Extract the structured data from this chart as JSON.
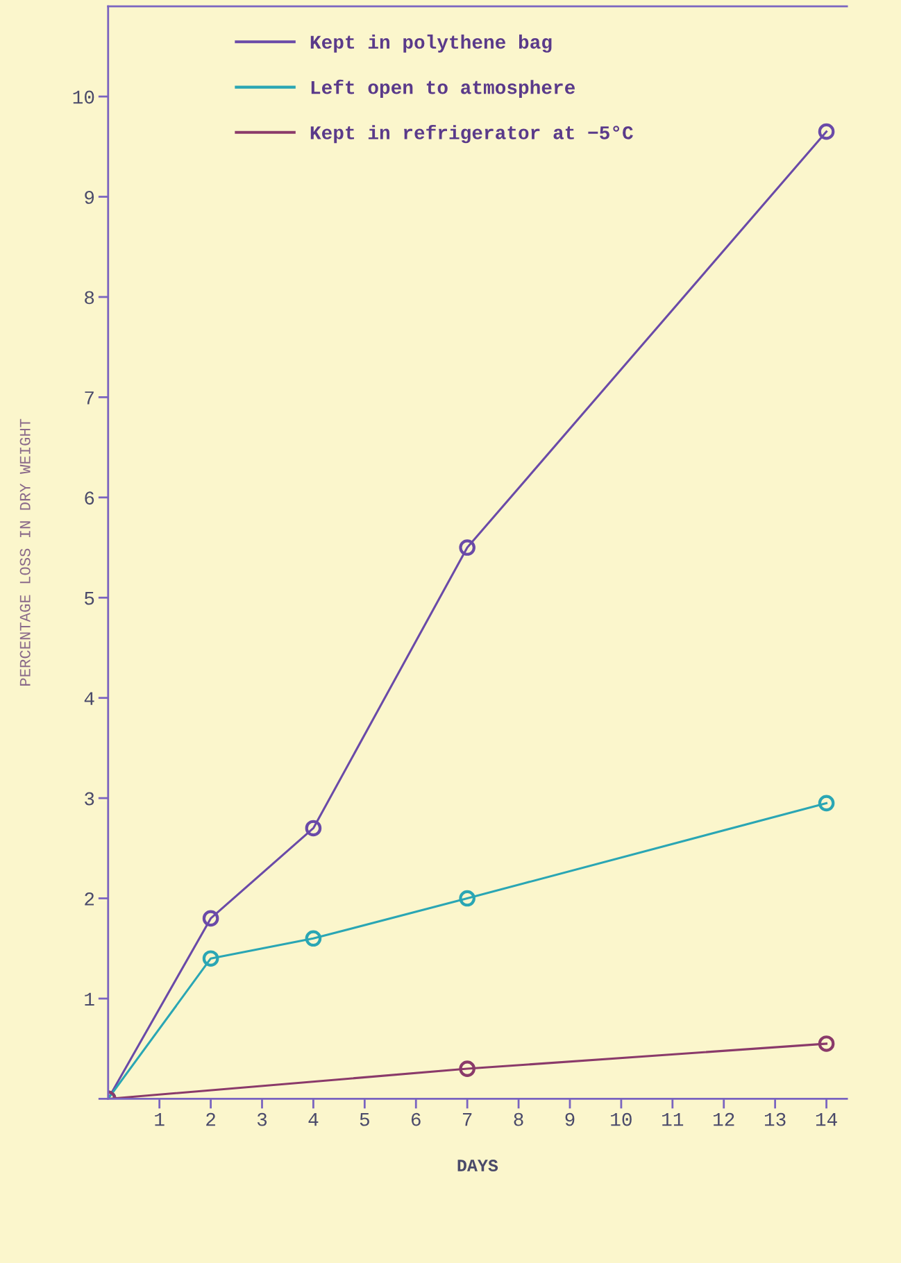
{
  "chart_data": {
    "type": "line",
    "xlabel": "DAYS",
    "ylabel": "PERCENTAGE LOSS IN DRY WEIGHT",
    "x": [
      0,
      2,
      4,
      7,
      14
    ],
    "series": [
      {
        "name": "Kept in polythene bag",
        "color": "#6a4aa8",
        "values": [
          0,
          1.8,
          2.7,
          5.5,
          9.65
        ]
      },
      {
        "name": "Left open to atmosphere",
        "color": "#2aa6b4",
        "values": [
          0,
          1.4,
          1.6,
          2.0,
          2.95
        ]
      },
      {
        "name": "Kept in refrigerator at −5°C",
        "color": "#8a3a6a",
        "x": [
          0,
          7,
          14
        ],
        "values": [
          0,
          0.3,
          0.55
        ]
      }
    ],
    "xlim": [
      0,
      14.4
    ],
    "ylim": [
      0,
      10.9
    ],
    "xticks": [
      1,
      2,
      3,
      4,
      5,
      6,
      7,
      8,
      9,
      10,
      11,
      12,
      13,
      14
    ],
    "yticks": [
      {
        "value": 0,
        "label": null
      },
      1,
      2,
      3,
      4,
      5,
      6,
      7,
      8,
      9,
      10
    ],
    "grid": false,
    "legend": "top left",
    "marker": "circle",
    "line_style": "solid"
  }
}
